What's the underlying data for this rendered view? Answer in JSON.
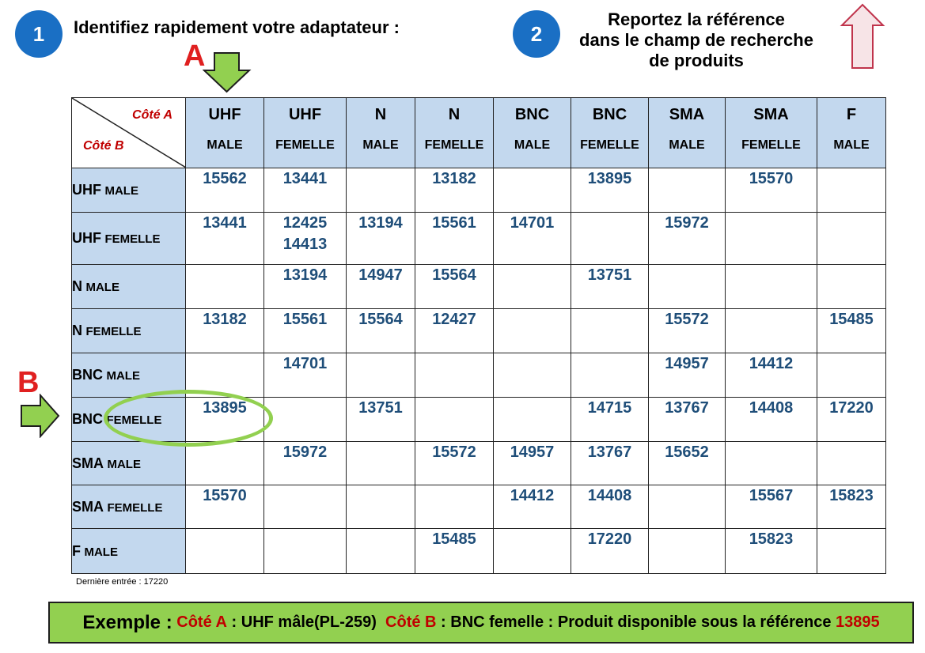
{
  "step1": {
    "number": "1",
    "text": "Identifiez rapidement votre adaptateur :"
  },
  "step2": {
    "number": "2",
    "lines": [
      "Reportez la référence",
      "dans le champ de recherche",
      "de produits"
    ]
  },
  "markers": {
    "a": "A",
    "b": "B"
  },
  "corner": {
    "cote_a": "Côté A",
    "cote_b": "Côté B"
  },
  "columns": [
    {
      "type": "UHF",
      "gender": "MALE"
    },
    {
      "type": "UHF",
      "gender": "FEMELLE"
    },
    {
      "type": "N",
      "gender": "MALE"
    },
    {
      "type": "N",
      "gender": "FEMELLE"
    },
    {
      "type": "BNC",
      "gender": "MALE"
    },
    {
      "type": "BNC",
      "gender": "FEMELLE"
    },
    {
      "type": "SMA",
      "gender": "MALE"
    },
    {
      "type": "SMA",
      "gender": "FEMELLE"
    },
    {
      "type": "F",
      "gender": "MALE"
    }
  ],
  "rows": [
    {
      "type": "UHF",
      "gender": "MALE",
      "cells": [
        [
          "15562"
        ],
        [
          "13441"
        ],
        [],
        [
          "13182"
        ],
        [],
        [
          "13895"
        ],
        [],
        [
          "15570"
        ],
        []
      ]
    },
    {
      "type": "UHF",
      "gender": "FEMELLE",
      "cells": [
        [
          "13441"
        ],
        [
          "12425",
          "14413"
        ],
        [
          "13194"
        ],
        [
          "15561"
        ],
        [
          "14701"
        ],
        [],
        [
          "15972"
        ],
        [],
        []
      ]
    },
    {
      "type": "N",
      "gender": "MALE",
      "cells": [
        [],
        [
          "13194"
        ],
        [
          "14947"
        ],
        [
          "15564"
        ],
        [],
        [
          "13751"
        ],
        [],
        [],
        []
      ]
    },
    {
      "type": "N",
      "gender": "FEMELLE",
      "cells": [
        [
          "13182"
        ],
        [
          "15561"
        ],
        [
          "15564"
        ],
        [
          "12427"
        ],
        [],
        [],
        [
          "15572"
        ],
        [],
        [
          "15485"
        ]
      ]
    },
    {
      "type": "BNC",
      "gender": "MALE",
      "cells": [
        [],
        [
          "14701"
        ],
        [],
        [],
        [],
        [],
        [
          "14957"
        ],
        [
          "14412"
        ],
        []
      ]
    },
    {
      "type": "BNC",
      "gender": "FEMELLE",
      "cells": [
        [
          "13895"
        ],
        [],
        [
          "13751"
        ],
        [],
        [],
        [
          "14715"
        ],
        [
          "13767"
        ],
        [
          "14408"
        ],
        [
          "17220"
        ]
      ]
    },
    {
      "type": "SMA",
      "gender": "MALE",
      "cells": [
        [],
        [
          "15972"
        ],
        [],
        [
          "15572"
        ],
        [
          "14957"
        ],
        [
          "13767"
        ],
        [
          "15652"
        ],
        [],
        []
      ]
    },
    {
      "type": "SMA",
      "gender": "FEMELLE",
      "cells": [
        [
          "15570"
        ],
        [],
        [],
        [],
        [
          "14412"
        ],
        [
          "14408"
        ],
        [],
        [
          "15567"
        ],
        [
          "15823"
        ]
      ]
    },
    {
      "type": "F",
      "gender": "MALE",
      "cells": [
        [],
        [],
        [],
        [
          "15485"
        ],
        [],
        [
          "17220"
        ],
        [],
        [
          "15823"
        ],
        []
      ]
    }
  ],
  "last_entry": "Dernière entrée : 17220",
  "example": {
    "label": "Exemple :",
    "cote_a": "Côté A",
    "part1": ": UHF mâle(PL-259)",
    "cote_b": "Côté B",
    "part2": ": BNC femelle : Produit disponible sous la référence",
    "reference": "13895"
  },
  "colors": {
    "circle_blue": "#1a6fc4",
    "header_fill": "#c3d8ee",
    "value_blue": "#1f4e79",
    "accent_red": "#c00000",
    "marker_red": "#e02020",
    "green": "#92d050"
  }
}
